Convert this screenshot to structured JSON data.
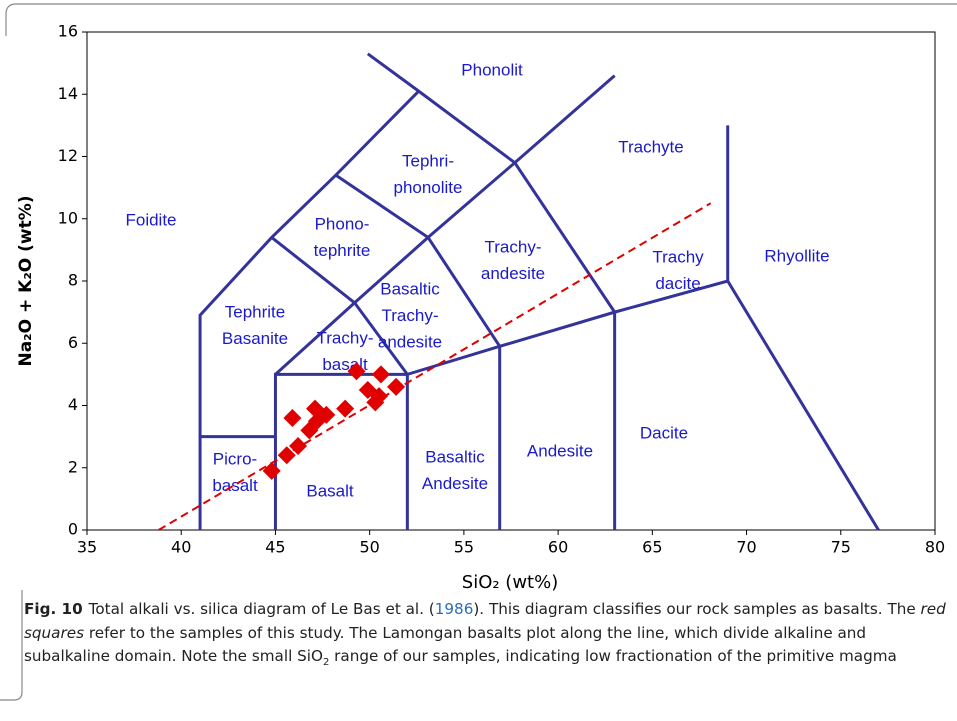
{
  "chart_data": {
    "type": "scatter",
    "xlabel": "SiO₂ (wt%)",
    "ylabel": "Na₂O + K₂O (wt%)",
    "xlim": [
      35,
      80
    ],
    "xticks": [
      35,
      40,
      45,
      50,
      55,
      60,
      65,
      70,
      75,
      80
    ],
    "ylim": [
      0,
      16
    ],
    "yticks": [
      0,
      2,
      4,
      6,
      8,
      10,
      12,
      14,
      16
    ],
    "series": [
      {
        "color": "#e00000",
        "x": [
          44.8,
          45.6,
          46.2,
          45.9,
          46.8,
          47.2,
          47.1,
          47.7,
          48.7,
          49.3,
          49.9,
          50.3,
          50.6,
          50.5,
          51.4
        ],
        "values": [
          1.9,
          2.4,
          2.7,
          3.6,
          3.2,
          3.5,
          3.9,
          3.7,
          3.9,
          5.1,
          4.5,
          4.1,
          5.0,
          4.3,
          4.6
        ]
      }
    ],
    "trend_line": {
      "color": "#e00000",
      "x": [
        38.8,
        68.1
      ],
      "values": [
        0,
        10.5
      ]
    },
    "boundary_color": "#33339a",
    "boundaries": [
      {
        "x": [
          41,
          41,
          45
        ],
        "y": [
          0,
          3,
          3
        ]
      },
      {
        "x": [
          41,
          41,
          44.8,
          48.2,
          52.6
        ],
        "y": [
          3,
          6.9,
          9.4,
          11.4,
          14.1
        ]
      },
      {
        "x": [
          45,
          45,
          52,
          52
        ],
        "y": [
          0,
          5,
          5,
          0
        ]
      },
      {
        "x": [
          45,
          49.2,
          53.1,
          57.7,
          63
        ],
        "y": [
          5,
          7.3,
          9.4,
          11.8,
          14.6
        ]
      },
      {
        "x": [
          52,
          56.9,
          63,
          69,
          77
        ],
        "y": [
          5,
          5.9,
          7,
          8,
          0
        ]
      },
      {
        "x": [
          56.9,
          56.9
        ],
        "y": [
          0,
          5.9
        ]
      },
      {
        "x": [
          63,
          63
        ],
        "y": [
          0,
          7
        ]
      },
      {
        "x": [
          44.8,
          49.2,
          52
        ],
        "y": [
          9.4,
          7.3,
          5
        ]
      },
      {
        "x": [
          48.2,
          53.1,
          56.9
        ],
        "y": [
          11.4,
          9.4,
          5.9
        ]
      },
      {
        "x": [
          49.9,
          52.6,
          57.7,
          63
        ],
        "y": [
          15.3,
          14.1,
          11.8,
          7
        ]
      },
      {
        "x": [
          69,
          69
        ],
        "y": [
          8,
          13
        ]
      }
    ],
    "region_color": "#1a1acc",
    "regions": [
      [
        "Phonolit"
      ],
      [
        "Tephri-",
        "phonolite"
      ],
      [
        "Trachyte"
      ],
      [
        "Foidite"
      ],
      [
        "Phono-",
        "tephrite"
      ],
      [
        "Trachy-",
        "andesite"
      ],
      [
        "Trachy",
        "dacite"
      ],
      [
        "Rhyollite"
      ],
      [
        "Basaltic",
        "Trachy-",
        "andesite"
      ],
      [
        "Tephrite",
        "Basanite"
      ],
      [
        "Trachy-",
        "basalt"
      ],
      [
        "Basaltic",
        "Andesite"
      ],
      [
        "Andesite"
      ],
      [
        "Dacite"
      ],
      [
        "Picro-",
        "basalt"
      ],
      [
        "Basalt"
      ]
    ]
  },
  "caption": {
    "label": "Fig. 10",
    "parts": [
      "Total alkali vs. silica diagram of Le Bas et al. (",
      "1986",
      "). This diagram classifies our rock samples as basalts. The ",
      "red squares",
      " refer to the samples of this study. The Lamongan basalts plot along the line, which divide alkaline and subalkaline domain. Note the small SiO",
      "2",
      " range of our samples, indicating low fractionation of the primitive magma"
    ]
  }
}
